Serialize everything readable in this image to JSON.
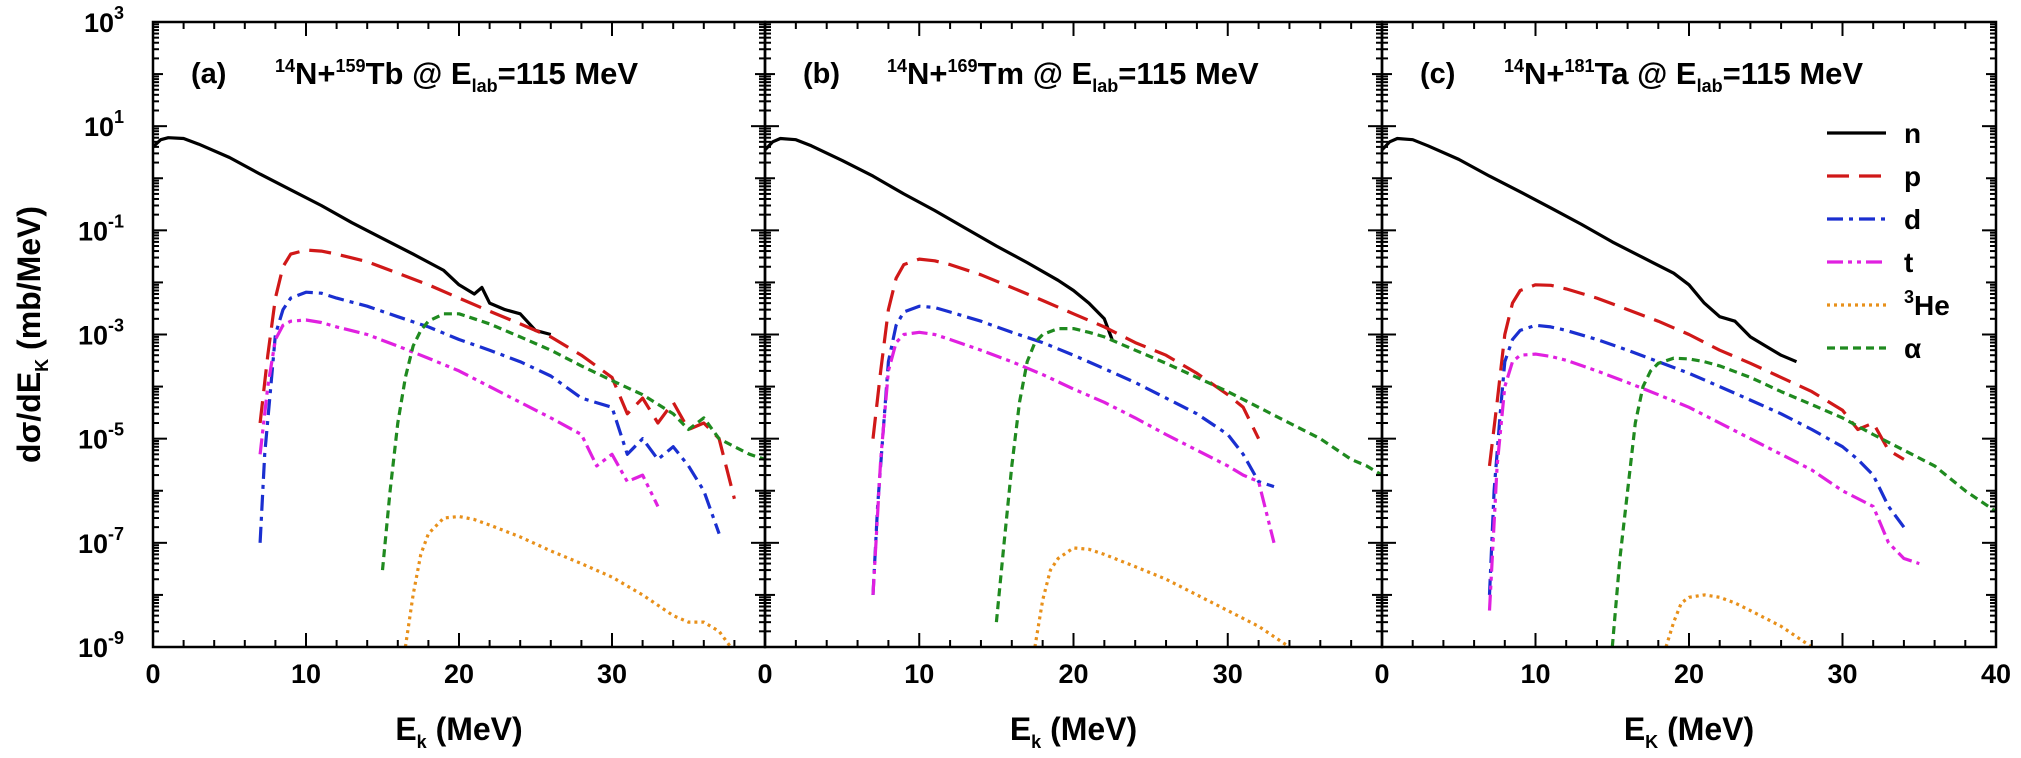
{
  "chart_data": {
    "type": "line",
    "yscale": "log",
    "ylim": [
      1e-09,
      1000
    ],
    "xlim": [
      0,
      40
    ],
    "ylabel": {
      "main": "dσ/dE",
      "sub": "K",
      "tail": " (mb/MeV)"
    },
    "ytick_labels": [
      {
        "value": 1000,
        "base": "10",
        "exp": "3"
      },
      {
        "value": 10,
        "base": "10",
        "exp": "1"
      },
      {
        "value": 0.1,
        "base": "10",
        "exp": "-1"
      },
      {
        "value": 0.001,
        "base": "10",
        "exp": "-3"
      },
      {
        "value": 1e-05,
        "base": "10",
        "exp": "-5"
      },
      {
        "value": 1e-07,
        "base": "10",
        "exp": "-7"
      },
      {
        "value": 1e-09,
        "base": "10",
        "exp": "-9"
      }
    ],
    "colors": {
      "n": "#000000",
      "p": "#d01818",
      "d": "#1a2fd0",
      "t": "#e020e0",
      "He3": "#e8901a",
      "alpha": "#1f8a1f"
    },
    "legend": {
      "placement": "right of panel (c)",
      "entries": [
        {
          "key": "n",
          "label": "n",
          "sup": ""
        },
        {
          "key": "p",
          "label": "p",
          "sup": ""
        },
        {
          "key": "d",
          "label": "d",
          "sup": ""
        },
        {
          "key": "t",
          "label": "t",
          "sup": ""
        },
        {
          "key": "He3",
          "label": "He",
          "sup": "3"
        },
        {
          "key": "alpha",
          "label": "α",
          "sup": ""
        }
      ]
    },
    "panels": [
      {
        "label": "(a)",
        "title": {
          "proj_mass": "14",
          "proj": "N+",
          "targ_mass": "159",
          "targ": "Tb @ E",
          "sub": "lab",
          "tail": "=115 MeV"
        },
        "xlabel": {
          "main": "E",
          "sub": "k",
          "tail": " (MeV)"
        },
        "xtick_labels": [
          "0",
          "10",
          "20",
          "30"
        ],
        "series": [
          {
            "key": "n",
            "x": [
              0,
              0.5,
              1,
              2,
              3,
              5,
              7,
              9,
              11,
              13,
              15,
              17,
              19,
              20,
              21,
              21.5,
              22,
              23,
              24,
              25,
              26
            ],
            "y": [
              4,
              5.5,
              6,
              5.8,
              4.5,
              2.5,
              1.2,
              0.6,
              0.3,
              0.14,
              0.07,
              0.035,
              0.017,
              0.009,
              0.006,
              0.008,
              0.004,
              0.003,
              0.0025,
              0.0012,
              0.001
            ]
          },
          {
            "key": "p",
            "x": [
              7,
              7.5,
              8,
              8.5,
              9,
              10,
              11,
              12,
              14,
              16,
              18,
              20,
              22,
              24,
              26,
              28,
              30,
              31,
              32,
              33,
              34,
              35,
              36,
              37,
              38
            ],
            "y": [
              2e-05,
              0.0004,
              0.005,
              0.02,
              0.035,
              0.042,
              0.04,
              0.035,
              0.025,
              0.015,
              0.009,
              0.005,
              0.0028,
              0.0016,
              0.0009,
              0.0004,
              0.00015,
              3e-05,
              6e-05,
              2e-05,
              5e-05,
              1.5e-05,
              2e-05,
              1e-05,
              7e-07
            ]
          },
          {
            "key": "d",
            "x": [
              7,
              7.3,
              7.7,
              8,
              8.5,
              9,
              10,
              11,
              12,
              14,
              16,
              18,
              20,
              22,
              24,
              26,
              28,
              30,
              31,
              32,
              33,
              34,
              35,
              36,
              37
            ],
            "y": [
              1e-07,
              5e-06,
              0.0001,
              0.001,
              0.003,
              0.005,
              0.0065,
              0.0062,
              0.005,
              0.0035,
              0.0022,
              0.0014,
              0.0008,
              0.0005,
              0.0003,
              0.00016,
              6e-05,
              4e-05,
              5e-06,
              1e-05,
              4e-06,
              7e-06,
              3e-06,
              1e-06,
              1.5e-07
            ]
          },
          {
            "key": "t",
            "x": [
              7,
              7.5,
              8,
              8.5,
              9,
              10,
              11,
              12,
              14,
              16,
              18,
              20,
              22,
              24,
              26,
              28,
              29,
              30,
              31,
              32,
              33
            ],
            "y": [
              5e-06,
              0.0001,
              0.0008,
              0.0015,
              0.0018,
              0.0019,
              0.0017,
              0.0014,
              0.001,
              0.0006,
              0.00035,
              0.0002,
              0.0001,
              5e-05,
              2.5e-05,
              1.2e-05,
              3e-06,
              5e-06,
              1.5e-06,
              2e-06,
              5e-07
            ]
          },
          {
            "key": "He3",
            "x": [
              16.5,
              17,
              17.5,
              18,
              19,
              20,
              21,
              22,
              24,
              26,
              28,
              30,
              32,
              34,
              35,
              36,
              37,
              38
            ],
            "y": [
              1e-09,
              1e-08,
              6e-08,
              1.5e-07,
              3e-07,
              3.2e-07,
              2.8e-07,
              2.2e-07,
              1.3e-07,
              7e-08,
              4e-08,
              2.2e-08,
              1e-08,
              4e-09,
              3e-09,
              3e-09,
              2e-09,
              8e-10
            ]
          },
          {
            "key": "alpha",
            "x": [
              15,
              15.5,
              16,
              16.5,
              17,
              17.5,
              18,
              19,
              20,
              21,
              22,
              24,
              26,
              28,
              30,
              32,
              34,
              35,
              36,
              37,
              38,
              39,
              40
            ],
            "y": [
              3e-08,
              1e-06,
              2e-05,
              0.00015,
              0.0006,
              0.0012,
              0.0018,
              0.0025,
              0.0025,
              0.002,
              0.0016,
              0.0009,
              0.0005,
              0.00025,
              0.00013,
              7e-05,
              3e-05,
              1.5e-05,
              2.5e-05,
              1e-05,
              7e-06,
              5e-06,
              4e-06
            ]
          }
        ]
      },
      {
        "label": "(b)",
        "title": {
          "proj_mass": "14",
          "proj": "N+",
          "targ_mass": "169",
          "targ": "Tm @ E",
          "sub": "lab",
          "tail": "=115 MeV"
        },
        "xlabel": {
          "main": "E",
          "sub": "k",
          "tail": " (MeV)"
        },
        "xtick_labels": [
          "0",
          "10",
          "20",
          "30"
        ],
        "series": [
          {
            "key": "n",
            "x": [
              0,
              0.5,
              1,
              2,
              3,
              5,
              7,
              9,
              11,
              13,
              15,
              17,
              19,
              20,
              21,
              22,
              22.5
            ],
            "y": [
              3.5,
              5,
              5.8,
              5.5,
              4.2,
              2.2,
              1.1,
              0.5,
              0.24,
              0.11,
              0.05,
              0.024,
              0.011,
              0.007,
              0.004,
              0.002,
              0.0008
            ]
          },
          {
            "key": "p",
            "x": [
              7,
              7.5,
              8,
              8.5,
              9,
              10,
              11,
              12,
              14,
              16,
              18,
              20,
              22,
              24,
              26,
              28,
              30,
              31,
              32
            ],
            "y": [
              1e-05,
              0.0002,
              0.003,
              0.012,
              0.022,
              0.028,
              0.026,
              0.022,
              0.014,
              0.008,
              0.0045,
              0.0025,
              0.0014,
              0.0007,
              0.0004,
              0.00018,
              7e-05,
              4e-05,
              1e-05
            ]
          },
          {
            "key": "d",
            "x": [
              7,
              7.3,
              7.7,
              8,
              8.5,
              9,
              10,
              11,
              12,
              14,
              16,
              18,
              20,
              22,
              24,
              26,
              28,
              30,
              31,
              32,
              33
            ],
            "y": [
              1e-08,
              5e-07,
              2e-05,
              0.0003,
              0.0015,
              0.0027,
              0.0035,
              0.0033,
              0.0027,
              0.0018,
              0.0011,
              0.0007,
              0.0004,
              0.00022,
              0.00012,
              6e-05,
              3e-05,
              1.2e-05,
              5e-06,
              1.5e-06,
              1.2e-06
            ]
          },
          {
            "key": "t",
            "x": [
              7,
              7.5,
              8,
              8.5,
              9,
              10,
              11,
              12,
              14,
              16,
              18,
              20,
              22,
              24,
              26,
              28,
              30,
              31,
              32,
              33
            ],
            "y": [
              1e-08,
              4e-06,
              0.0002,
              0.0007,
              0.001,
              0.0011,
              0.001,
              0.0008,
              0.0005,
              0.0003,
              0.00017,
              9e-05,
              5e-05,
              2.5e-05,
              1.2e-05,
              6e-06,
              3e-06,
              2e-06,
              1.5e-06,
              1e-07
            ]
          },
          {
            "key": "He3",
            "x": [
              17.5,
              18,
              18.5,
              19,
              20,
              21,
              22,
              24,
              26,
              28,
              30,
              32,
              34
            ],
            "y": [
              1e-09,
              8e-09,
              3e-08,
              5e-08,
              8e-08,
              7.5e-08,
              6e-08,
              3.5e-08,
              2e-08,
              1e-08,
              5e-09,
              2.5e-09,
              1e-09
            ]
          },
          {
            "key": "alpha",
            "x": [
              15,
              15.5,
              16,
              16.5,
              17,
              17.5,
              18,
              19,
              20,
              21,
              22,
              24,
              26,
              28,
              30,
              32,
              34,
              36,
              38,
              39,
              40
            ],
            "y": [
              3e-09,
              1e-07,
              3e-06,
              5e-05,
              0.0003,
              0.0007,
              0.001,
              0.0013,
              0.0013,
              0.0011,
              0.0009,
              0.0005,
              0.00028,
              0.00015,
              8e-05,
              4e-05,
              2e-05,
              1e-05,
              4e-06,
              3e-06,
              2e-06
            ]
          }
        ]
      },
      {
        "label": "(c)",
        "title": {
          "proj_mass": "14",
          "proj": "N+",
          "targ_mass": "181",
          "targ": "Ta @ E",
          "sub": "lab",
          "tail": "=115 MeV"
        },
        "xlabel": {
          "main": "E",
          "sub": "K",
          "tail": " (MeV)"
        },
        "xtick_labels": [
          "0",
          "10",
          "20",
          "30",
          "40"
        ],
        "series": [
          {
            "key": "n",
            "x": [
              0,
              0.5,
              1,
              2,
              3,
              5,
              7,
              9,
              11,
              13,
              15,
              17,
              19,
              20,
              21,
              22,
              23,
              24,
              25,
              26,
              27
            ],
            "y": [
              3.5,
              5,
              5.8,
              5.5,
              4.2,
              2.3,
              1.1,
              0.55,
              0.27,
              0.13,
              0.06,
              0.03,
              0.015,
              0.009,
              0.004,
              0.0022,
              0.0018,
              0.0009,
              0.0006,
              0.0004,
              0.0003
            ]
          },
          {
            "key": "p",
            "x": [
              7,
              7.5,
              8,
              8.5,
              9,
              10,
              11,
              12,
              14,
              16,
              18,
              20,
              22,
              24,
              26,
              28,
              30,
              31,
              32,
              33,
              34
            ],
            "y": [
              3e-06,
              5e-05,
              0.001,
              0.004,
              0.007,
              0.009,
              0.0088,
              0.0075,
              0.005,
              0.003,
              0.0018,
              0.001,
              0.0005,
              0.00028,
              0.00015,
              8e-05,
              3.5e-05,
              1.5e-05,
              2e-05,
              6e-06,
              4e-06
            ]
          },
          {
            "key": "d",
            "x": [
              7,
              7.3,
              7.7,
              8,
              8.5,
              9,
              10,
              11,
              12,
              14,
              16,
              18,
              20,
              22,
              24,
              26,
              28,
              30,
              31,
              32,
              33,
              34
            ],
            "y": [
              1e-08,
              1e-06,
              3e-05,
              0.0003,
              0.0008,
              0.0012,
              0.0015,
              0.0014,
              0.0012,
              0.0008,
              0.0005,
              0.0003,
              0.00018,
              0.0001,
              5.5e-05,
              3e-05,
              1.5e-05,
              7e-06,
              4e-06,
              2e-06,
              5e-07,
              2e-07
            ]
          },
          {
            "key": "t",
            "x": [
              7,
              7.5,
              8,
              8.5,
              9,
              10,
              11,
              12,
              14,
              16,
              18,
              20,
              22,
              24,
              26,
              28,
              30,
              32,
              33,
              34,
              35
            ],
            "y": [
              5e-09,
              3e-06,
              0.0001,
              0.0003,
              0.0004,
              0.00042,
              0.00038,
              0.00032,
              0.0002,
              0.00012,
              7e-05,
              4e-05,
              2e-05,
              1e-05,
              5e-06,
              2.5e-06,
              1e-06,
              5e-07,
              1e-07,
              5e-08,
              4e-08
            ]
          },
          {
            "key": "He3",
            "x": [
              18.5,
              19,
              19.5,
              20,
              21,
              22,
              23,
              24,
              26,
              28
            ],
            "y": [
              1e-09,
              3e-09,
              7e-09,
              9e-09,
              1e-08,
              9e-09,
              7e-09,
              5e-09,
              2.5e-09,
              1e-09
            ]
          },
          {
            "key": "alpha",
            "x": [
              15,
              15.5,
              16,
              16.5,
              17,
              17.5,
              18,
              19,
              20,
              21,
              22,
              24,
              26,
              28,
              30,
              32,
              34,
              36,
              38,
              40
            ],
            "y": [
              1e-09,
              5e-08,
              1e-06,
              2e-05,
              0.0001,
              0.0002,
              0.00028,
              0.00035,
              0.00034,
              0.0003,
              0.00025,
              0.00015,
              8e-05,
              4.5e-05,
              2.5e-05,
              1.2e-05,
              6e-06,
              3e-06,
              1e-06,
              4e-07
            ]
          }
        ]
      }
    ]
  }
}
